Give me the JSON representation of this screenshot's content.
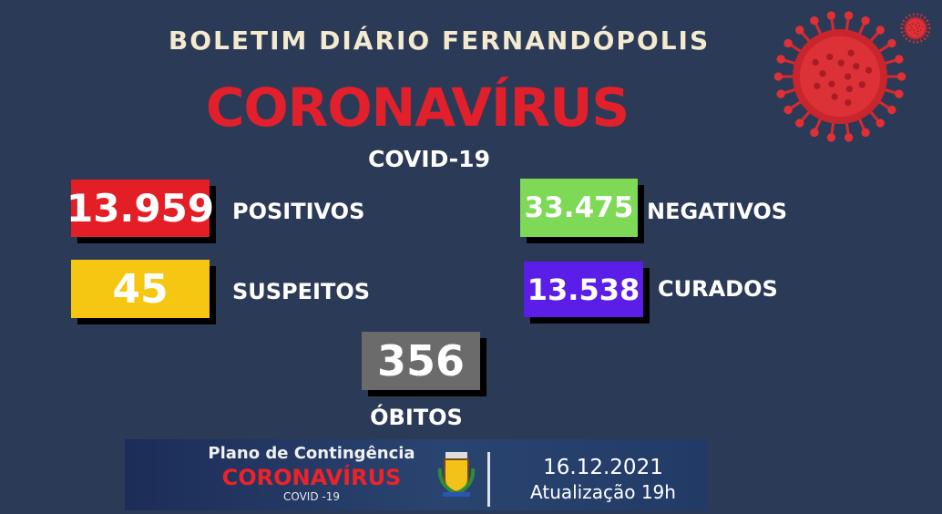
{
  "header": {
    "title": "BOLETIM DIÁRIO FERNANDÓPOLIS",
    "headline": "CORONAVÍRUS",
    "subtitle": "COVID-19"
  },
  "stats": {
    "positivos": {
      "value": "13.959",
      "label": "POSITIVOS",
      "color": "#e31e26"
    },
    "negativos": {
      "value": "33.475",
      "label": "NEGATIVOS",
      "color": "#7ed957"
    },
    "suspeitos": {
      "value": "45",
      "label": "SUSPEITOS",
      "color": "#f5c712"
    },
    "curados": {
      "value": "13.538",
      "label": "CURADOS",
      "color": "#5a1ee8"
    },
    "obitos": {
      "value": "356",
      "label": "ÓBITOS",
      "color": "#6b6b6b"
    }
  },
  "banner": {
    "line1": "Plano de Contingência",
    "line2": "CORONAVÍRUS",
    "line3": "COVID -19",
    "date": "16.12.2021",
    "update": "Atualização 19h"
  },
  "icons": {
    "virus": "virus-icon",
    "crest": "city-crest-icon"
  }
}
